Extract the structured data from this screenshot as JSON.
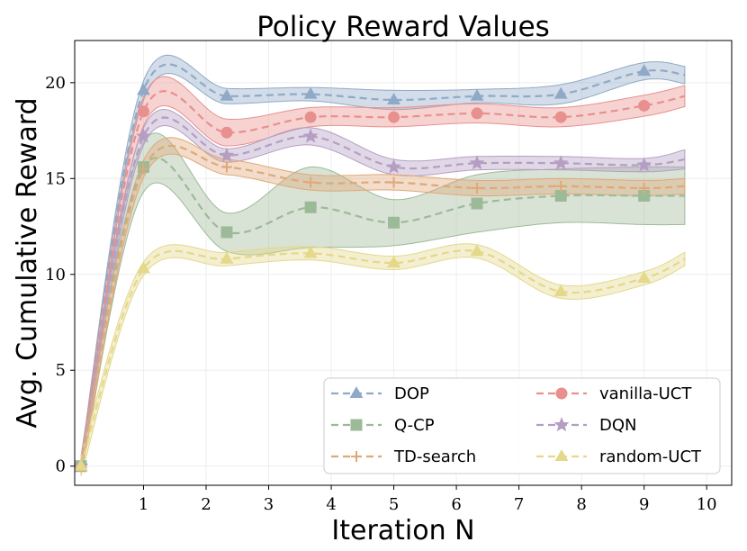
{
  "chart_data": {
    "type": "line",
    "title": "Policy Reward Values",
    "xlabel": "Iteration N",
    "ylabel": "Avg. Cumulative Reward",
    "xlim": [
      -0.1,
      10.4
    ],
    "ylim": [
      -1,
      22.2
    ],
    "xticks": [
      1,
      2,
      3,
      4,
      5,
      6,
      7,
      8,
      9,
      10
    ],
    "xtick_labels": [
      "1",
      "2",
      "3",
      "4",
      "5",
      "6",
      "7",
      "8",
      "9",
      "10"
    ],
    "yticks": [
      0,
      5,
      10,
      15,
      20
    ],
    "ytick_labels": [
      "0",
      "5",
      "10",
      "15",
      "20"
    ],
    "grid": true,
    "legend_position": "bottom-right",
    "legend_columns": 2,
    "series": [
      {
        "name": "DOP",
        "color": "#8fa9c7",
        "marker": "triangle",
        "x": [
          0,
          1,
          2.33,
          3.67,
          5,
          6.33,
          7.67,
          9,
          9.65
        ],
        "values": [
          0,
          19.6,
          19.3,
          19.4,
          19.1,
          19.3,
          19.4,
          20.6,
          20.4
        ],
        "band": [
          0.5,
          0.5,
          0.4,
          0.35,
          0.5,
          0.35,
          0.5,
          0.45,
          0.45
        ]
      },
      {
        "name": "vanilla-UCT",
        "color": "#e8908d",
        "marker": "circle",
        "x": [
          0,
          1,
          2.33,
          3.67,
          5,
          6.33,
          7.67,
          9,
          9.65
        ],
        "values": [
          0,
          18.5,
          17.4,
          18.2,
          18.2,
          18.4,
          18.2,
          18.8,
          19.3
        ],
        "band": [
          0.5,
          0.75,
          0.7,
          0.5,
          0.5,
          0.5,
          0.5,
          0.55,
          0.55
        ]
      },
      {
        "name": "Q-CP",
        "color": "#9dba98",
        "marker": "square",
        "x": [
          0,
          1,
          2.33,
          3.67,
          5,
          6.33,
          7.67,
          9,
          9.65
        ],
        "values": [
          0,
          15.6,
          12.2,
          13.5,
          12.7,
          13.7,
          14.1,
          14.1,
          14.1
        ],
        "band": [
          0.5,
          1.3,
          1.0,
          2.1,
          1.2,
          1.5,
          1.4,
          1.5,
          1.5
        ]
      },
      {
        "name": "DQN",
        "color": "#b59ec3",
        "marker": "star",
        "x": [
          0,
          1,
          2.33,
          3.67,
          5,
          6.33,
          7.67,
          9,
          9.65
        ],
        "values": [
          0,
          17.2,
          16.2,
          17.2,
          15.6,
          15.8,
          15.8,
          15.7,
          16.0
        ],
        "band": [
          0.5,
          0.45,
          0.35,
          0.45,
          0.4,
          0.35,
          0.35,
          0.35,
          0.5
        ]
      },
      {
        "name": "TD-search",
        "color": "#e0a878",
        "marker": "plus",
        "x": [
          0,
          1,
          2.33,
          3.67,
          5,
          6.33,
          7.67,
          9,
          9.65
        ],
        "values": [
          0,
          15.5,
          15.6,
          14.8,
          14.8,
          14.5,
          14.6,
          14.5,
          14.6
        ],
        "band": [
          0.5,
          0.45,
          0.4,
          0.4,
          0.4,
          0.4,
          0.4,
          0.4,
          0.4
        ]
      },
      {
        "name": "random-UCT",
        "color": "#e4d88a",
        "marker": "triangle",
        "x": [
          0,
          1,
          2.33,
          3.67,
          5,
          6.33,
          7.67,
          9,
          9.65
        ],
        "values": [
          0,
          10.3,
          10.8,
          11.1,
          10.6,
          11.2,
          9.1,
          9.8,
          10.8
        ],
        "band": [
          0.5,
          0.35,
          0.35,
          0.35,
          0.35,
          0.35,
          0.35,
          0.35,
          0.35
        ]
      }
    ]
  }
}
